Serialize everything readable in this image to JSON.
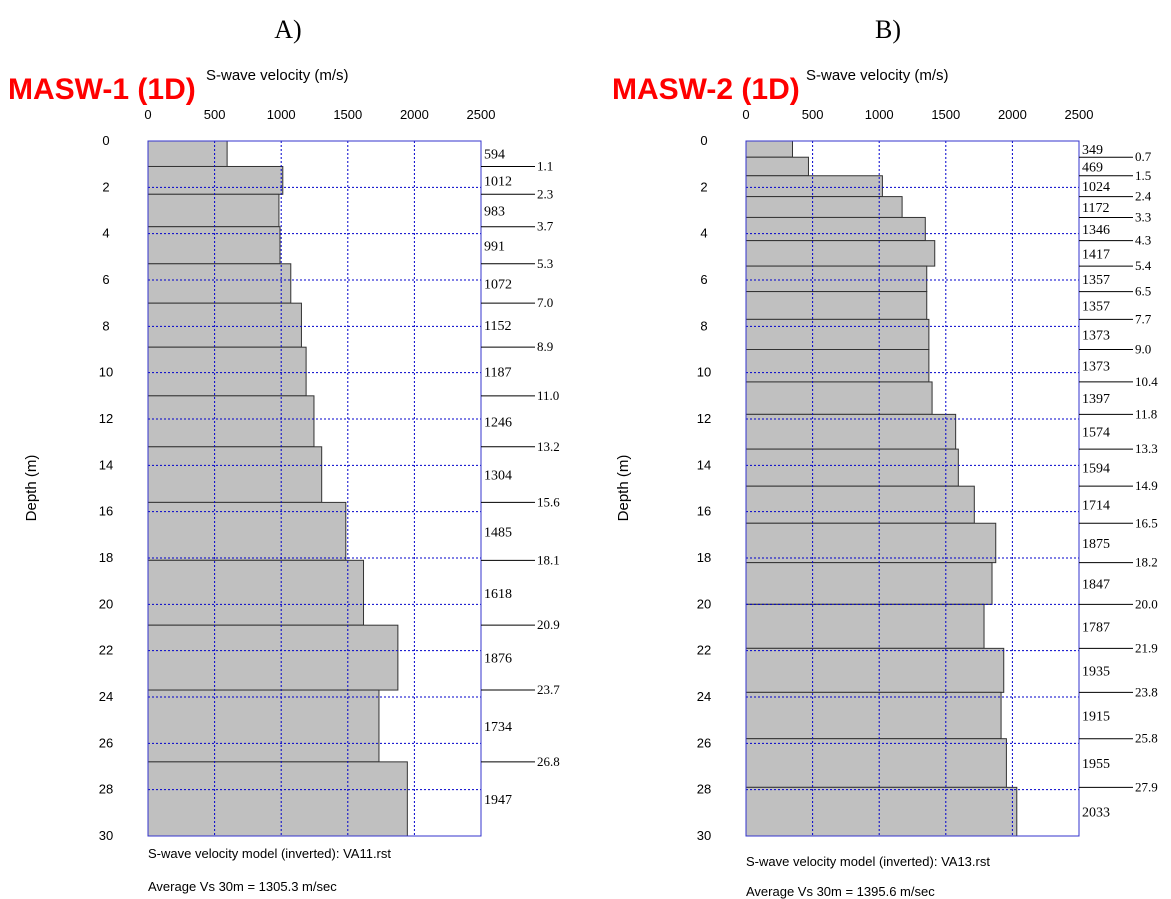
{
  "colors": {
    "title": "#ff0000",
    "bar_fill": "#c0c0c0",
    "grid": "#0000cc",
    "frame": "#3333cc"
  },
  "chart_data": [
    {
      "type": "bar",
      "panel_label": "A)",
      "title": "MASW-1 (1D)",
      "xlabel": "S-wave velocity (m/s)",
      "ylabel": "Depth (m)",
      "xlim": [
        0,
        2500
      ],
      "ylim": [
        0,
        30
      ],
      "x_ticks": [
        0,
        500,
        1000,
        1500,
        2000,
        2500
      ],
      "y_ticks": [
        0,
        2,
        4,
        6,
        8,
        10,
        12,
        14,
        16,
        18,
        20,
        22,
        24,
        26,
        28,
        30
      ],
      "grid": true,
      "layers": [
        {
          "top": 0,
          "bottom": 1.1,
          "vs": 594
        },
        {
          "top": 1.1,
          "bottom": 2.3,
          "vs": 1012
        },
        {
          "top": 2.3,
          "bottom": 3.7,
          "vs": 983
        },
        {
          "top": 3.7,
          "bottom": 5.3,
          "vs": 991
        },
        {
          "top": 5.3,
          "bottom": 7.0,
          "vs": 1072
        },
        {
          "top": 7.0,
          "bottom": 8.9,
          "vs": 1152
        },
        {
          "top": 8.9,
          "bottom": 11.0,
          "vs": 1187
        },
        {
          "top": 11.0,
          "bottom": 13.2,
          "vs": 1246
        },
        {
          "top": 13.2,
          "bottom": 15.6,
          "vs": 1304
        },
        {
          "top": 15.6,
          "bottom": 18.1,
          "vs": 1485
        },
        {
          "top": 18.1,
          "bottom": 20.9,
          "vs": 1618
        },
        {
          "top": 20.9,
          "bottom": 23.7,
          "vs": 1876
        },
        {
          "top": 23.7,
          "bottom": 26.8,
          "vs": 1734
        },
        {
          "top": 26.8,
          "bottom": 30,
          "vs": 1947
        }
      ],
      "boundary_labels": [
        "1.1",
        "2.3",
        "3.7",
        "5.3",
        "7.0",
        "8.9",
        "11.0",
        "13.2",
        "15.6",
        "18.1",
        "20.9",
        "23.7",
        "26.8"
      ],
      "model_text": "S-wave velocity model (inverted): VA11.rst",
      "average_text": "Average Vs 30m = 1305.3 m/sec"
    },
    {
      "type": "bar",
      "panel_label": "B)",
      "title": "MASW-2 (1D)",
      "xlabel": "S-wave velocity (m/s)",
      "ylabel": "Depth (m)",
      "xlim": [
        0,
        2500
      ],
      "ylim": [
        0,
        30
      ],
      "x_ticks": [
        0,
        500,
        1000,
        1500,
        2000,
        2500
      ],
      "y_ticks": [
        0,
        2,
        4,
        6,
        8,
        10,
        12,
        14,
        16,
        18,
        20,
        22,
        24,
        26,
        28,
        30
      ],
      "grid": true,
      "layers": [
        {
          "top": 0,
          "bottom": 0.7,
          "vs": 349
        },
        {
          "top": 0.7,
          "bottom": 1.5,
          "vs": 469
        },
        {
          "top": 1.5,
          "bottom": 2.4,
          "vs": 1024
        },
        {
          "top": 2.4,
          "bottom": 3.3,
          "vs": 1172
        },
        {
          "top": 3.3,
          "bottom": 4.3,
          "vs": 1346
        },
        {
          "top": 4.3,
          "bottom": 5.4,
          "vs": 1417
        },
        {
          "top": 5.4,
          "bottom": 6.5,
          "vs": 1357
        },
        {
          "top": 6.5,
          "bottom": 7.7,
          "vs": 1357
        },
        {
          "top": 7.7,
          "bottom": 9.0,
          "vs": 1373
        },
        {
          "top": 9.0,
          "bottom": 10.4,
          "vs": 1373
        },
        {
          "top": 10.4,
          "bottom": 11.8,
          "vs": 1397
        },
        {
          "top": 11.8,
          "bottom": 13.3,
          "vs": 1574
        },
        {
          "top": 13.3,
          "bottom": 14.9,
          "vs": 1594
        },
        {
          "top": 14.9,
          "bottom": 16.5,
          "vs": 1714
        },
        {
          "top": 16.5,
          "bottom": 18.2,
          "vs": 1875
        },
        {
          "top": 18.2,
          "bottom": 20.0,
          "vs": 1847
        },
        {
          "top": 20.0,
          "bottom": 21.9,
          "vs": 1787
        },
        {
          "top": 21.9,
          "bottom": 23.8,
          "vs": 1935
        },
        {
          "top": 23.8,
          "bottom": 25.8,
          "vs": 1915
        },
        {
          "top": 25.8,
          "bottom": 27.9,
          "vs": 1955
        },
        {
          "top": 27.9,
          "bottom": 30,
          "vs": 2033
        }
      ],
      "boundary_labels": [
        "0.7",
        "1.5",
        "2.4",
        "3.3",
        "4.3",
        "5.4",
        "6.5",
        "7.7",
        "9.0",
        "10.4",
        "11.8",
        "13.3",
        "14.9",
        "16.5",
        "18.2",
        "20.0",
        "21.9",
        "23.8",
        "25.8",
        "27.9"
      ],
      "model_text": "S-wave velocity model (inverted): VA13.rst",
      "average_text": "Average Vs 30m = 1395.6 m/sec"
    }
  ]
}
